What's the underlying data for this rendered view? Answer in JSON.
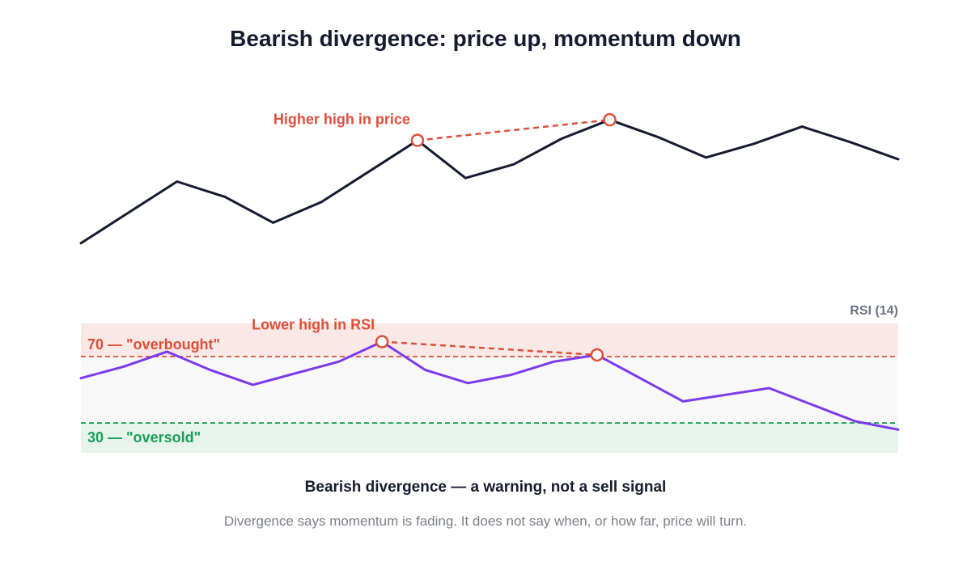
{
  "chart_data": {
    "type": "line",
    "title": "Bearish divergence: price up, momentum down",
    "panels": [
      {
        "name": "price",
        "series": [
          {
            "values": [
              10,
              28,
              46,
              37,
              22,
              34,
              52,
              70,
              48,
              56,
              71,
              82,
              72,
              60,
              68,
              78,
              69,
              59
            ]
          }
        ],
        "annotation": {
          "label": "Higher high in price",
          "from_index": 7,
          "to_index": 11
        }
      },
      {
        "name": "rsi",
        "label": "RSI (14)",
        "ylim": [
          0,
          100
        ],
        "series": [
          {
            "values": [
              57,
              64,
              73,
              62,
              53,
              60,
              67,
              79,
              62,
              54,
              59,
              67,
              71,
              57,
              43,
              47,
              51,
              41,
              31,
              26
            ]
          }
        ],
        "levels": [
          {
            "value": 70,
            "label": "70 — \"overbought\"",
            "color": "#e04e39"
          },
          {
            "value": 30,
            "label": "30 — \"oversold\"",
            "color": "#1a9e57"
          }
        ],
        "annotation": {
          "label": "Lower high in RSI",
          "from_index": 7,
          "to_index": 12
        }
      }
    ],
    "colors": {
      "price_line": "#141b2d",
      "rsi_line": "#7c3aed",
      "annotation": "#e04e39",
      "overbought_zone": "#f9e8e6",
      "oversold_zone": "#e6f4ec",
      "neutral_zone": "#f8f8f9"
    }
  },
  "footer": {
    "headline": "Bearish divergence — a warning, not a sell signal",
    "note": "Divergence says momentum is fading. It does not say when, or how far, price will turn."
  }
}
